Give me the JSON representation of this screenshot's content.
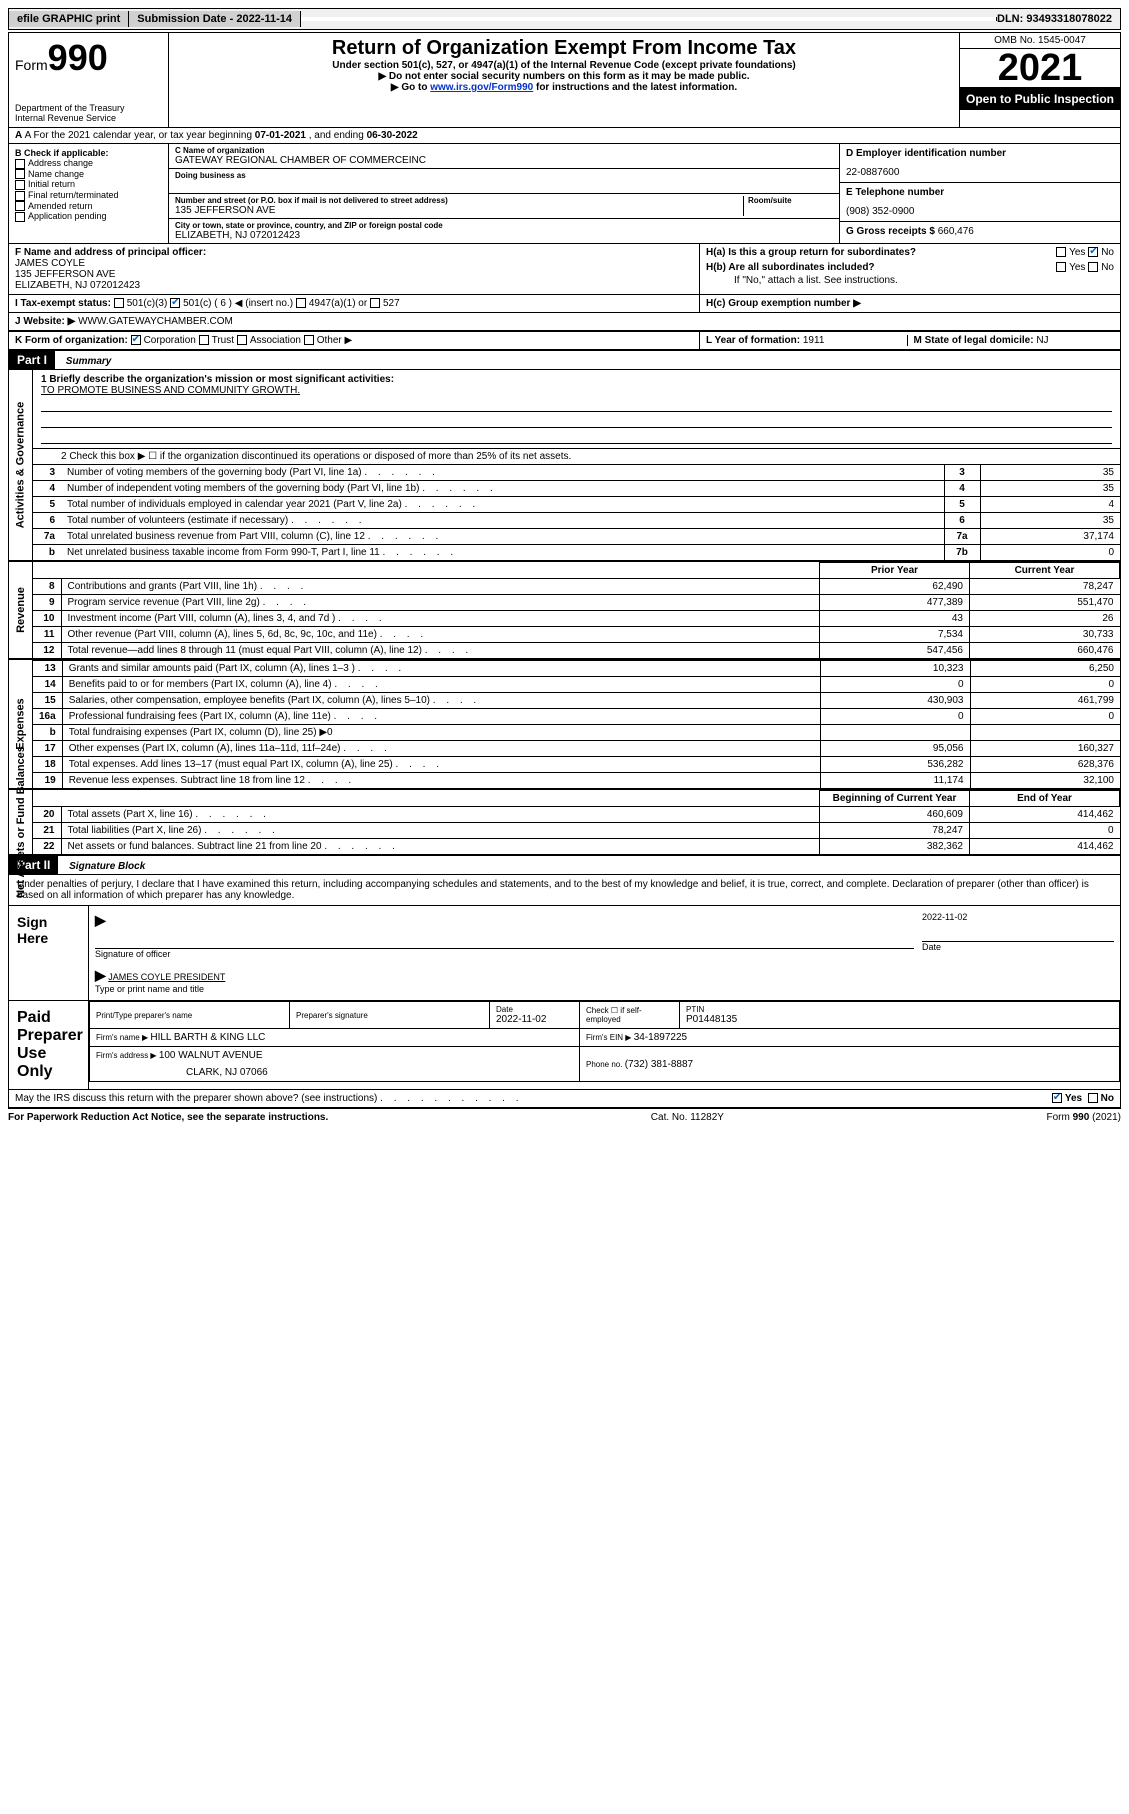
{
  "topbar": {
    "efile": "efile GRAPHIC print",
    "subdate_label": "Submission Date - ",
    "subdate": "2022-11-14",
    "dln_label": "DLN: ",
    "dln": "93493318078022"
  },
  "header": {
    "form_word": "Form",
    "form_num": "990",
    "dept": "Department of the Treasury\nInternal Revenue Service",
    "title": "Return of Organization Exempt From Income Tax",
    "sub1": "Under section 501(c), 527, or 4947(a)(1) of the Internal Revenue Code (except private foundations)",
    "sub2": "▶ Do not enter social security numbers on this form as it may be made public.",
    "sub3_a": "▶ Go to ",
    "sub3_link": "www.irs.gov/Form990",
    "sub3_b": " for instructions and the latest information.",
    "omb": "OMB No. 1545-0047",
    "year": "2021",
    "inspect": "Open to Public Inspection"
  },
  "rowA": {
    "prefix": "A For the 2021 calendar year, or tax year beginning ",
    "begin": "07-01-2021",
    "mid": " , and ending ",
    "end": "06-30-2022"
  },
  "colB": {
    "label": "B Check if applicable:",
    "items": [
      "Address change",
      "Name change",
      "Initial return",
      "Final return/terminated",
      "Amended return",
      "Application pending"
    ]
  },
  "colC": {
    "name_label": "C Name of organization",
    "name": "GATEWAY REGIONAL CHAMBER OF COMMERCEINC",
    "dba_label": "Doing business as",
    "street_label": "Number and street (or P.O. box if mail is not delivered to street address)",
    "room_label": "Room/suite",
    "street": "135 JEFFERSON AVE",
    "city_label": "City or town, state or province, country, and ZIP or foreign postal code",
    "city": "ELIZABETH, NJ  072012423"
  },
  "colD": {
    "ein_label": "D Employer identification number",
    "ein": "22-0887600",
    "phone_label": "E Telephone number",
    "phone": "(908) 352-0900",
    "gross_label": "G Gross receipts $ ",
    "gross": "660,476"
  },
  "rowF": {
    "label": "F Name and address of principal officer:",
    "name": "JAMES COYLE",
    "addr1": "135 JEFFERSON AVE",
    "addr2": "ELIZABETH, NJ  072012423"
  },
  "rowH": {
    "ha": "H(a)  Is this a group return for subordinates?",
    "hb": "H(b)  Are all subordinates included?",
    "hb_note": "If \"No,\" attach a list. See instructions.",
    "hc": "H(c)  Group exemption number ▶",
    "yes": "Yes",
    "no": "No"
  },
  "rowI": {
    "label": "I   Tax-exempt status:",
    "c3": "501(c)(3)",
    "c_other_a": "501(c) ( 6 ) ◀ (insert no.)",
    "a1": "4947(a)(1) or",
    "s527": "527"
  },
  "rowJ": {
    "label": "J   Website: ▶ ",
    "val": "WWW.GATEWAYCHAMBER.COM"
  },
  "rowK": {
    "label": "K Form of organization:",
    "corp": "Corporation",
    "trust": "Trust",
    "assoc": "Association",
    "other": "Other ▶"
  },
  "rowL": {
    "label": "L Year of formation: ",
    "val": "1911"
  },
  "rowM": {
    "label": "M State of legal domicile: ",
    "val": "NJ"
  },
  "partI": {
    "hdr": "Part I",
    "title": "Summary",
    "line1_label": "1   Briefly describe the organization's mission or most significant activities:",
    "line1_val": "TO PROMOTE BUSINESS AND COMMUNITY GROWTH.",
    "line2": "2   Check this box ▶ ☐  if the organization discontinued its operations or disposed of more than 25% of its net assets.",
    "tabs": {
      "gov": "Activities & Governance",
      "rev": "Revenue",
      "exp": "Expenses",
      "net": "Net Assets or Fund Balances"
    },
    "gov_lines": [
      {
        "n": "3",
        "d": "Number of voting members of the governing body (Part VI, line 1a)",
        "k": "3",
        "v": "35"
      },
      {
        "n": "4",
        "d": "Number of independent voting members of the governing body (Part VI, line 1b)",
        "k": "4",
        "v": "35"
      },
      {
        "n": "5",
        "d": "Total number of individuals employed in calendar year 2021 (Part V, line 2a)",
        "k": "5",
        "v": "4"
      },
      {
        "n": "6",
        "d": "Total number of volunteers (estimate if necessary)",
        "k": "6",
        "v": "35"
      },
      {
        "n": "7a",
        "d": "Total unrelated business revenue from Part VIII, column (C), line 12",
        "k": "7a",
        "v": "37,174"
      },
      {
        "n": "b",
        "d": "Net unrelated business taxable income from Form 990-T, Part I, line 11",
        "k": "7b",
        "v": "0"
      }
    ],
    "col_hdr_prior": "Prior Year",
    "col_hdr_curr": "Current Year",
    "rev_lines": [
      {
        "n": "8",
        "d": "Contributions and grants (Part VIII, line 1h)",
        "p": "62,490",
        "c": "78,247"
      },
      {
        "n": "9",
        "d": "Program service revenue (Part VIII, line 2g)",
        "p": "477,389",
        "c": "551,470"
      },
      {
        "n": "10",
        "d": "Investment income (Part VIII, column (A), lines 3, 4, and 7d )",
        "p": "43",
        "c": "26"
      },
      {
        "n": "11",
        "d": "Other revenue (Part VIII, column (A), lines 5, 6d, 8c, 9c, 10c, and 11e)",
        "p": "7,534",
        "c": "30,733"
      },
      {
        "n": "12",
        "d": "Total revenue—add lines 8 through 11 (must equal Part VIII, column (A), line 12)",
        "p": "547,456",
        "c": "660,476"
      }
    ],
    "exp_lines": [
      {
        "n": "13",
        "d": "Grants and similar amounts paid (Part IX, column (A), lines 1–3 )",
        "p": "10,323",
        "c": "6,250"
      },
      {
        "n": "14",
        "d": "Benefits paid to or for members (Part IX, column (A), line 4)",
        "p": "0",
        "c": "0"
      },
      {
        "n": "15",
        "d": "Salaries, other compensation, employee benefits (Part IX, column (A), lines 5–10)",
        "p": "430,903",
        "c": "461,799"
      },
      {
        "n": "16a",
        "d": "Professional fundraising fees (Part IX, column (A), line 11e)",
        "p": "0",
        "c": "0"
      },
      {
        "n": "b",
        "d": "Total fundraising expenses (Part IX, column (D), line 25) ▶0",
        "p": "",
        "c": "",
        "shade": true
      },
      {
        "n": "17",
        "d": "Other expenses (Part IX, column (A), lines 11a–11d, 11f–24e)",
        "p": "95,056",
        "c": "160,327"
      },
      {
        "n": "18",
        "d": "Total expenses. Add lines 13–17 (must equal Part IX, column (A), line 25)",
        "p": "536,282",
        "c": "628,376"
      },
      {
        "n": "19",
        "d": "Revenue less expenses. Subtract line 18 from line 12",
        "p": "11,174",
        "c": "32,100"
      }
    ],
    "net_hdr_begin": "Beginning of Current Year",
    "net_hdr_end": "End of Year",
    "net_lines": [
      {
        "n": "20",
        "d": "Total assets (Part X, line 16)",
        "p": "460,609",
        "c": "414,462"
      },
      {
        "n": "21",
        "d": "Total liabilities (Part X, line 26)",
        "p": "78,247",
        "c": "0"
      },
      {
        "n": "22",
        "d": "Net assets or fund balances. Subtract line 21 from line 20",
        "p": "382,362",
        "c": "414,462"
      }
    ]
  },
  "partII": {
    "hdr": "Part II",
    "title": "Signature Block",
    "decl": "Under penalties of perjury, I declare that I have examined this return, including accompanying schedules and statements, and to the best of my knowledge and belief, it is true, correct, and complete. Declaration of preparer (other than officer) is based on all information of which preparer has any knowledge.",
    "sign_here": "Sign Here",
    "sig_officer": "Signature of officer",
    "date": "Date",
    "sig_date": "2022-11-02",
    "officer_name": "JAMES COYLE  PRESIDENT",
    "type_name": "Type or print name and title",
    "paid": "Paid Preparer Use Only",
    "prep_name_label": "Print/Type preparer's name",
    "prep_sig_label": "Preparer's signature",
    "prep_date_label": "Date",
    "prep_date": "2022-11-02",
    "prep_check": "Check ☐ if self-employed",
    "ptin_label": "PTIN",
    "ptin": "P01448135",
    "firm_name_label": "Firm's name    ▶ ",
    "firm_name": "HILL BARTH & KING LLC",
    "firm_ein_label": "Firm's EIN ▶ ",
    "firm_ein": "34-1897225",
    "firm_addr_label": "Firm's address ▶ ",
    "firm_addr": "100 WALNUT AVENUE",
    "firm_addr2": "CLARK, NJ  07066",
    "firm_phone_label": "Phone no. ",
    "firm_phone": "(732) 381-8887",
    "discuss": "May the IRS discuss this return with the preparer shown above? (see instructions)"
  },
  "footer": {
    "left": "For Paperwork Reduction Act Notice, see the separate instructions.",
    "mid": "Cat. No. 11282Y",
    "right_a": "Form ",
    "right_b": "990",
    "right_c": " (2021)"
  }
}
